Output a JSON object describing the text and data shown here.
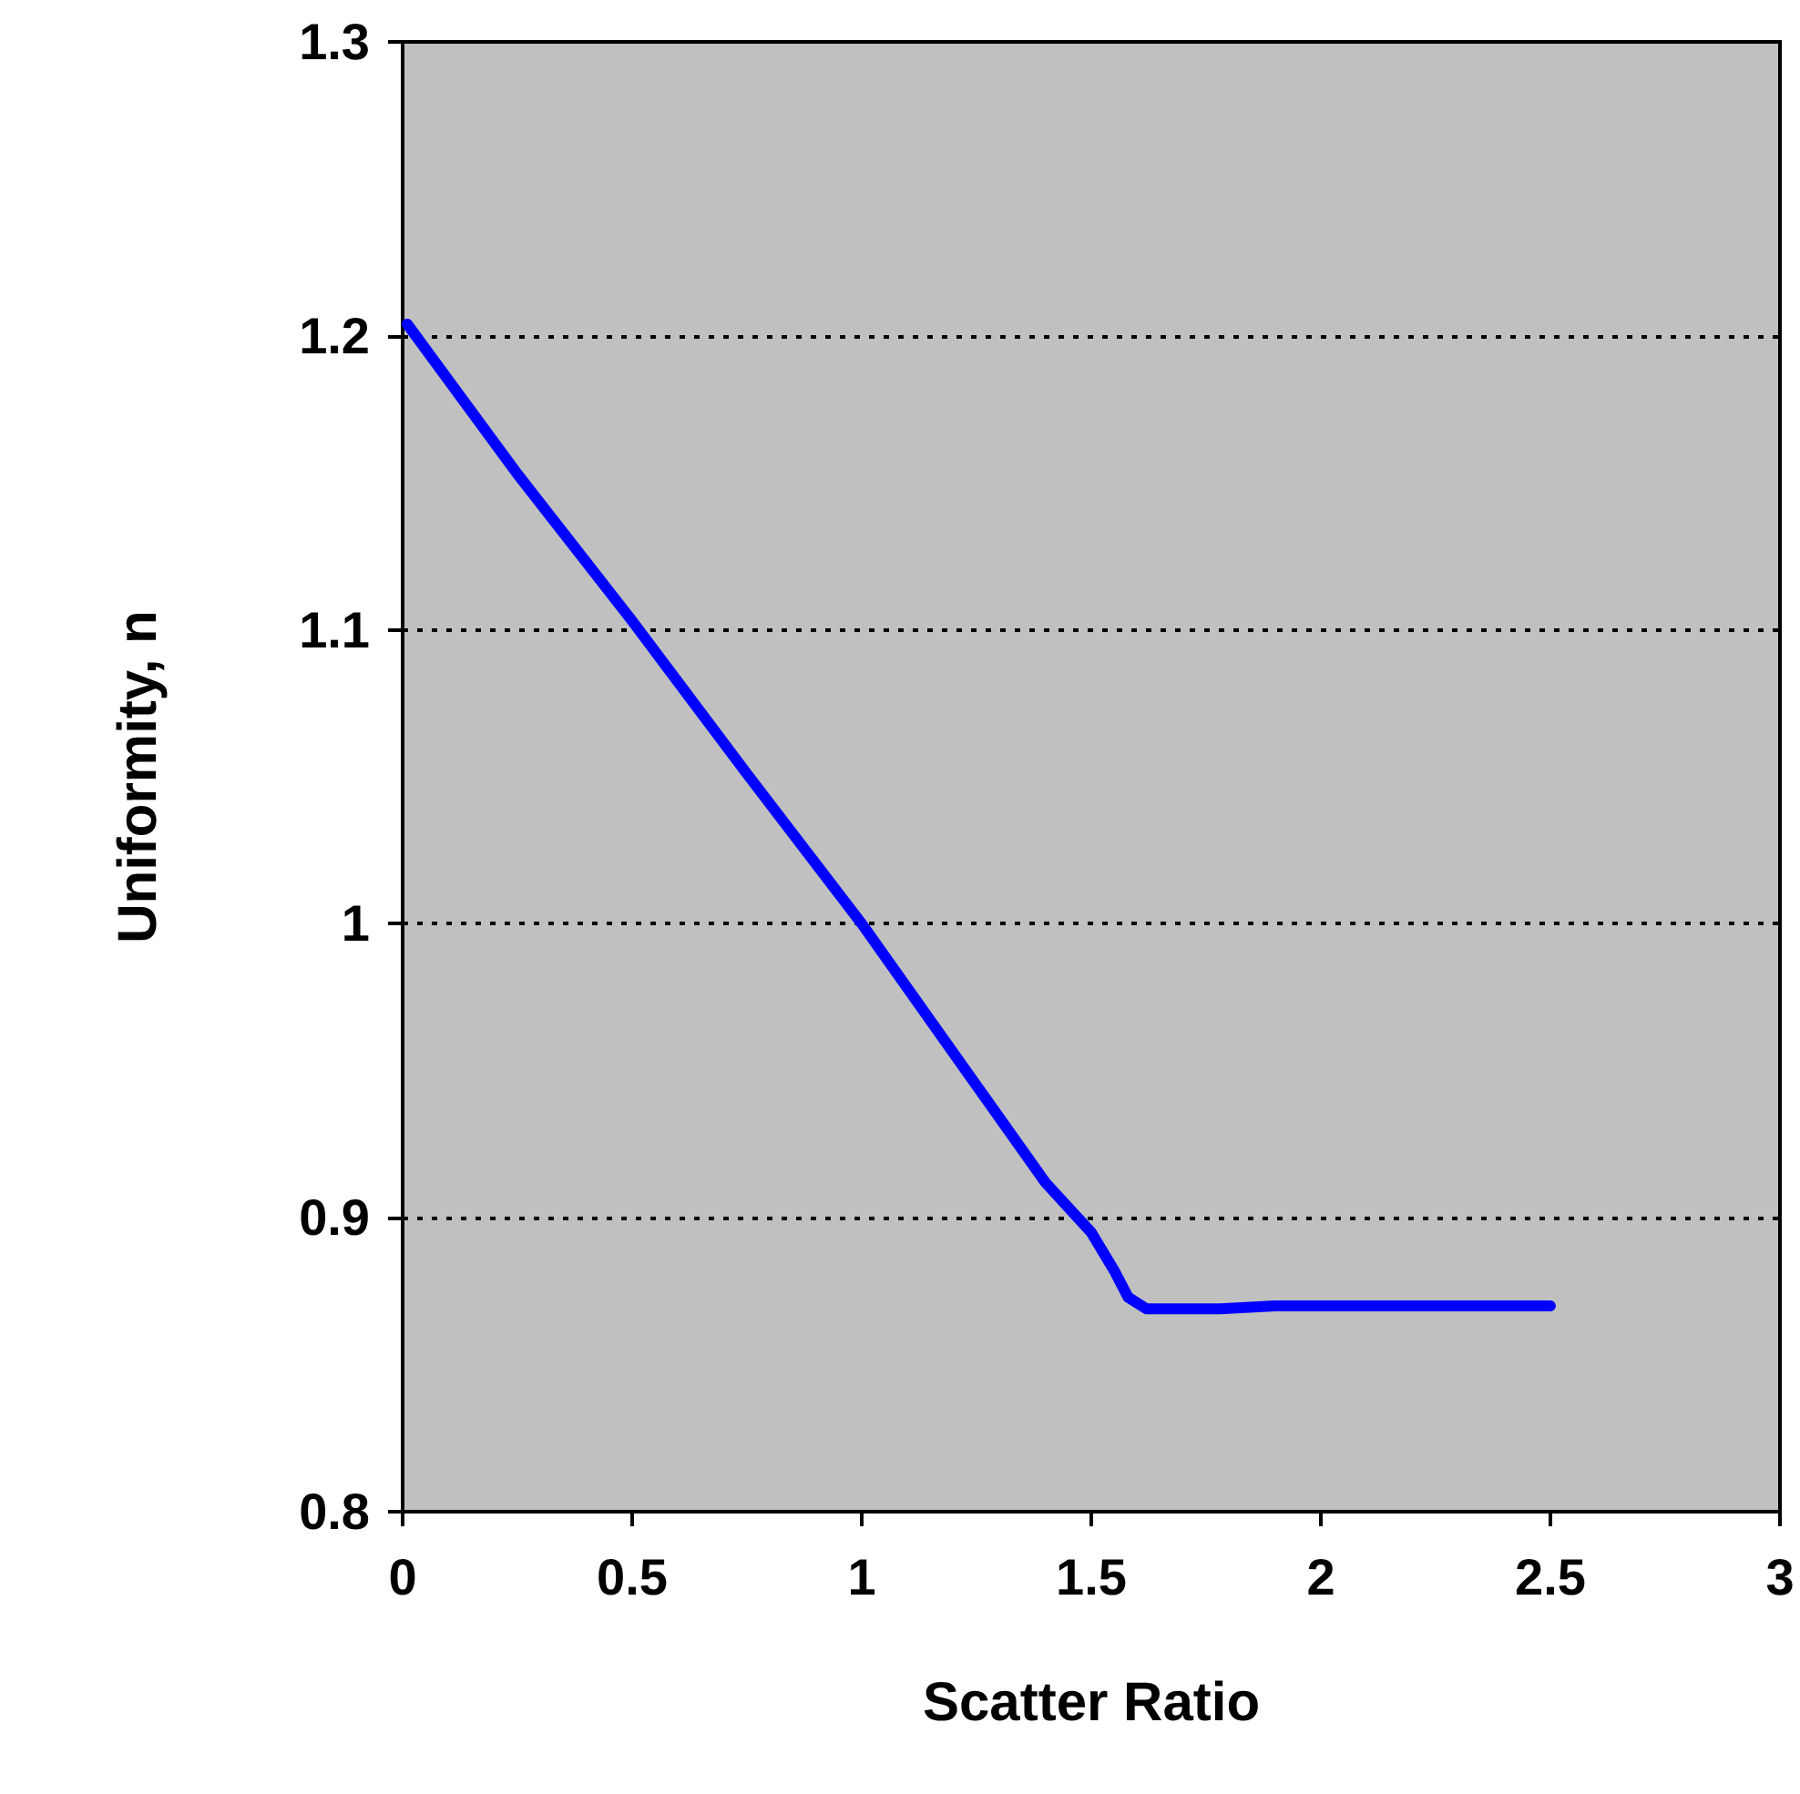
{
  "chart_data": {
    "type": "line",
    "xlabel": "Scatter Ratio",
    "ylabel": "Uniformity, n",
    "series": [
      {
        "color": "#0000ff",
        "x": [
          0.01,
          0.25,
          0.5,
          0.75,
          1.0,
          1.25,
          1.4,
          1.5,
          1.55,
          1.58,
          1.62,
          1.7,
          1.78,
          1.9,
          2.0,
          2.5
        ],
        "values": [
          1.204,
          1.153,
          1.103,
          1.051,
          1.0,
          0.945,
          0.912,
          0.895,
          0.882,
          0.873,
          0.869,
          0.869,
          0.869,
          0.87,
          0.87,
          0.87
        ]
      }
    ],
    "xlim": [
      0,
      3
    ],
    "xticks": [
      0,
      0.5,
      1,
      1.5,
      2,
      2.5,
      3
    ],
    "ylim": [
      0.8,
      1.3
    ],
    "yticks": [
      0.8,
      0.9,
      1,
      1.1,
      1.2,
      1.3
    ],
    "grid": "y",
    "marker": "none",
    "line_style": "solid"
  }
}
